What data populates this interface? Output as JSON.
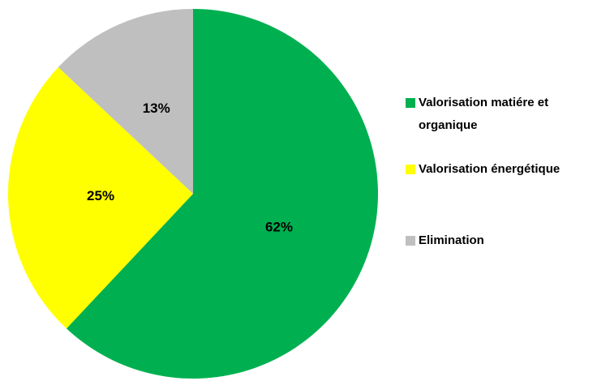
{
  "chart_data": {
    "type": "pie",
    "categories": [
      "Valorisation matiére et organique",
      "Valorisation énergétique",
      "Elimination"
    ],
    "values": [
      62,
      25,
      13
    ],
    "value_labels": [
      "62%",
      "25%",
      "13%"
    ],
    "colors": [
      "#00b050",
      "#ffff00",
      "#bfbfbf"
    ],
    "legend": "right"
  }
}
